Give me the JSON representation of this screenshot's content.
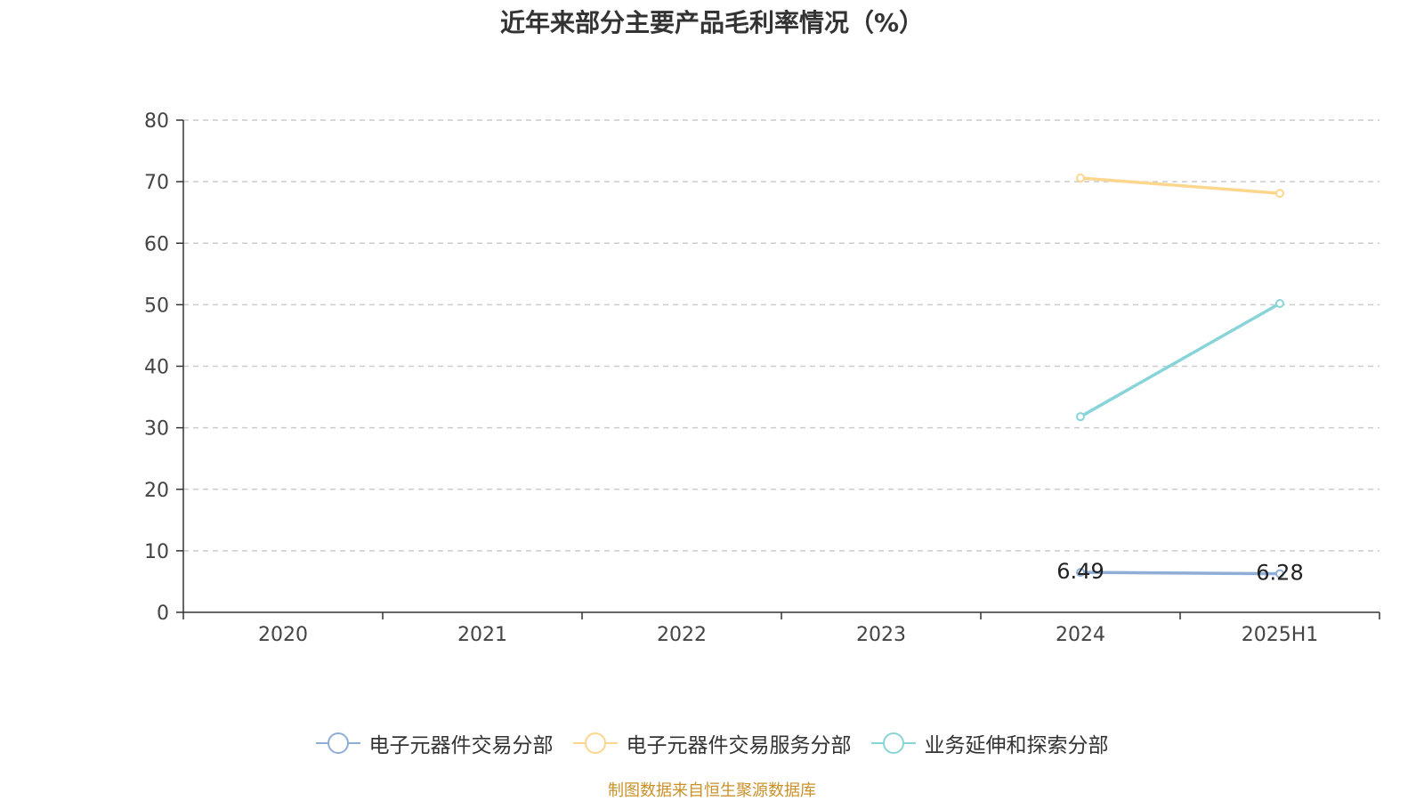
{
  "chart_data": {
    "type": "line",
    "title": "近年来部分主要产品毛利率情况（%）",
    "categories": [
      "2020",
      "2021",
      "2022",
      "2023",
      "2024",
      "2025H1"
    ],
    "ylim": [
      0,
      80
    ],
    "yticks": [
      0,
      10,
      20,
      30,
      40,
      50,
      60,
      70,
      80
    ],
    "grid": true,
    "legend_position": "bottom",
    "series": [
      {
        "name": "电子元器件交易分部",
        "color": "#8eaed6",
        "values": [
          null,
          null,
          null,
          null,
          6.49,
          6.28
        ],
        "labels": [
          null,
          null,
          null,
          null,
          "6.49",
          "6.28"
        ]
      },
      {
        "name": "电子元器件交易服务分部",
        "color": "#fcd68d",
        "values": [
          null,
          null,
          null,
          null,
          70.6,
          68.1
        ],
        "labels": [
          null,
          null,
          null,
          null,
          null,
          null
        ]
      },
      {
        "name": "业务延伸和探索分部",
        "color": "#88d4d8",
        "values": [
          null,
          null,
          null,
          null,
          31.8,
          50.2
        ],
        "labels": [
          null,
          null,
          null,
          null,
          null,
          null
        ]
      }
    ]
  },
  "source_note": "制图数据来自恒生聚源数据库"
}
